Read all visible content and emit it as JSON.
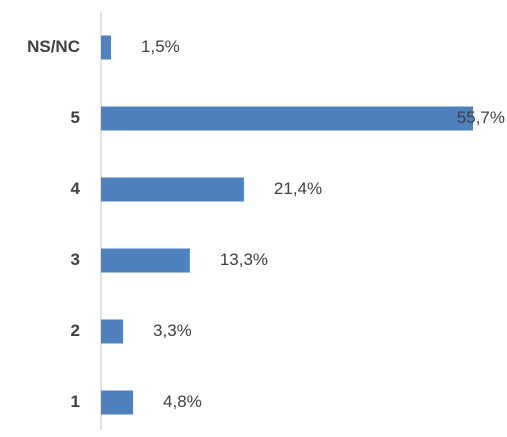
{
  "chart_data": {
    "type": "bar",
    "orientation": "horizontal",
    "categories": [
      "NS/NC",
      "5",
      "4",
      "3",
      "2",
      "1"
    ],
    "values": [
      1.5,
      55.7,
      21.4,
      13.3,
      3.3,
      4.8
    ],
    "value_labels": [
      "1,5%",
      "55,7%",
      "21,4%",
      "13,3%",
      "3,3%",
      "4,8%"
    ],
    "color": "#4f81bd"
  }
}
